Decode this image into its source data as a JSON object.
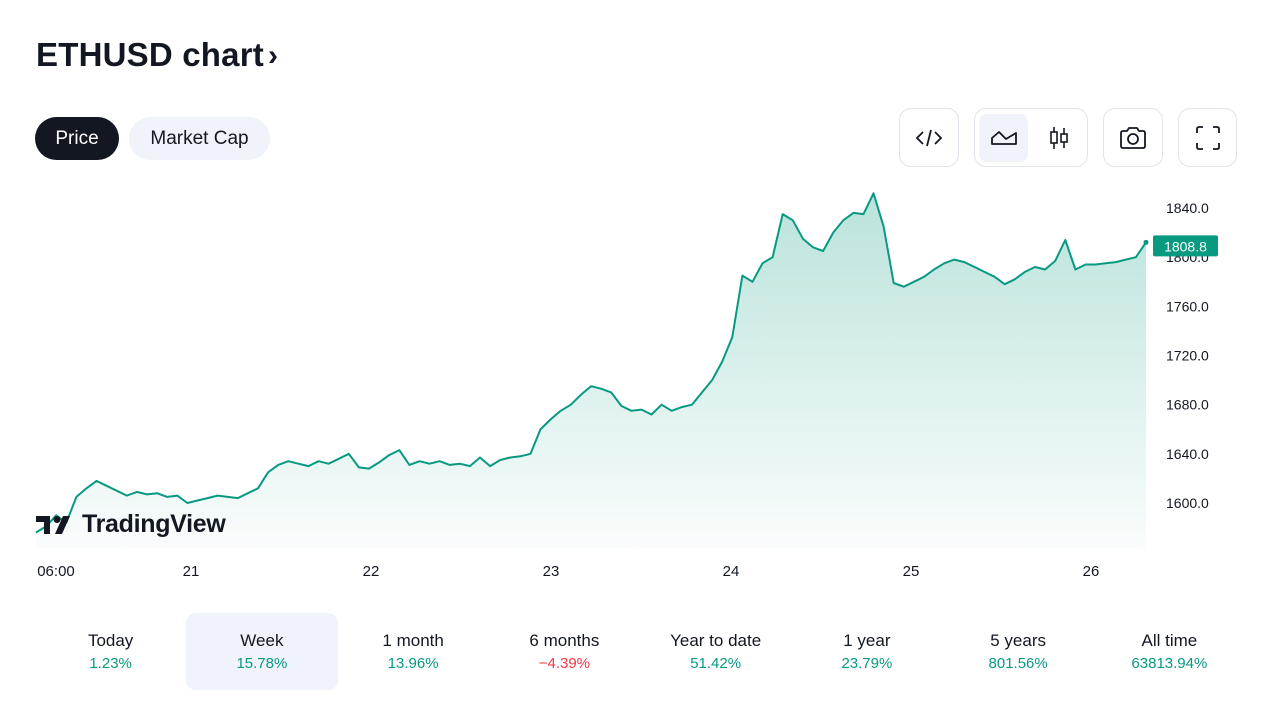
{
  "header": {
    "title": "ETHUSD chart",
    "chevron": "›"
  },
  "tabs": [
    {
      "label": "Price",
      "active": true
    },
    {
      "label": "Market Cap",
      "active": false
    }
  ],
  "toolbar": {
    "embed_icon": "code-icon",
    "area_icon": "area-chart-icon",
    "candles_icon": "candles-icon",
    "snapshot_icon": "camera-icon",
    "fullscreen_icon": "fullscreen-icon",
    "chart_style_active": "area"
  },
  "logo": {
    "text": "TradingView"
  },
  "colors": {
    "line": "#089981",
    "positive": "#089981",
    "negative": "#f23645",
    "dark": "#131722",
    "soft_bg": "#f0f3fa"
  },
  "chart_data": {
    "type": "area",
    "symbol": "ETHUSD",
    "ylim": [
      1570,
      1855
    ],
    "y_ticks": [
      "1600.0",
      "1640.0",
      "1680.0",
      "1720.0",
      "1760.0",
      "1800.0",
      "1840.0"
    ],
    "x_ticks": [
      "06:00",
      "21",
      "22",
      "23",
      "24",
      "25",
      "26"
    ],
    "last_price": "1808.8",
    "series": [
      {
        "values": [
          1576,
          1581,
          1590,
          1584,
          1605,
          1612,
          1618,
          1614,
          1610,
          1606,
          1609,
          1607,
          1608,
          1605,
          1606,
          1600,
          1602,
          1604,
          1606,
          1605,
          1604,
          1608,
          1612,
          1625,
          1631,
          1634,
          1632,
          1630,
          1634,
          1632,
          1636,
          1640,
          1629,
          1628,
          1633,
          1639,
          1643,
          1631,
          1634,
          1632,
          1634,
          1631,
          1632,
          1630,
          1637,
          1630,
          1635,
          1637,
          1638,
          1640,
          1660,
          1668,
          1675,
          1680,
          1688,
          1695,
          1693,
          1690,
          1679,
          1675,
          1676,
          1672,
          1680,
          1675,
          1678,
          1680,
          1690,
          1700,
          1715,
          1735,
          1785,
          1780,
          1795,
          1800,
          1835,
          1830,
          1815,
          1808,
          1805,
          1820,
          1830,
          1836,
          1835,
          1852,
          1825,
          1779,
          1776,
          1780,
          1784,
          1790,
          1795,
          1798,
          1796,
          1792,
          1788,
          1784,
          1778,
          1782,
          1788,
          1792,
          1790,
          1797,
          1814,
          1790,
          1794,
          1794,
          1795,
          1796,
          1798,
          1800,
          1812
        ]
      }
    ]
  },
  "periods": [
    {
      "label": "Today",
      "value": "1.23%",
      "sign": "pos",
      "active": false
    },
    {
      "label": "Week",
      "value": "15.78%",
      "sign": "pos",
      "active": true
    },
    {
      "label": "1 month",
      "value": "13.96%",
      "sign": "pos",
      "active": false
    },
    {
      "label": "6 months",
      "value": "−4.39%",
      "sign": "neg",
      "active": false
    },
    {
      "label": "Year to date",
      "value": "51.42%",
      "sign": "pos",
      "active": false
    },
    {
      "label": "1 year",
      "value": "23.79%",
      "sign": "pos",
      "active": false
    },
    {
      "label": "5 years",
      "value": "801.56%",
      "sign": "pos",
      "active": false
    },
    {
      "label": "All time",
      "value": "63813.94%",
      "sign": "pos",
      "active": false
    }
  ]
}
